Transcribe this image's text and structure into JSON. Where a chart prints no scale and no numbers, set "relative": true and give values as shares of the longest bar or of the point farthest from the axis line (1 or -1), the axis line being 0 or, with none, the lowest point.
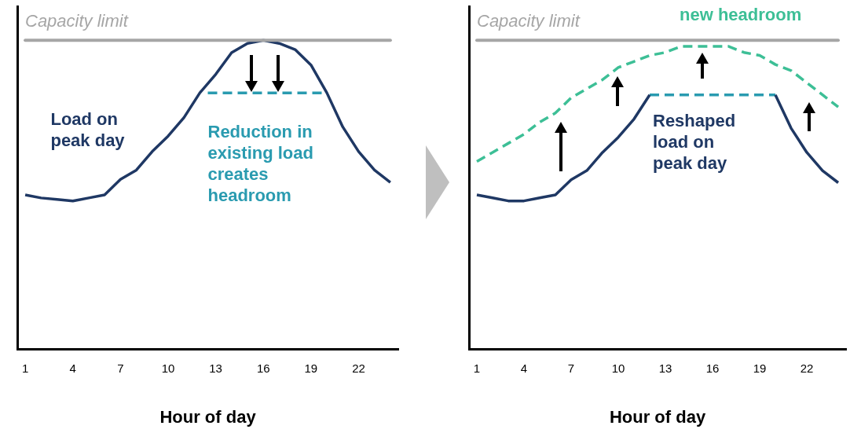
{
  "chart_data": [
    {
      "type": "line",
      "relative": true,
      "xlabel": "Hour of day",
      "x": [
        1,
        2,
        3,
        4,
        5,
        6,
        7,
        8,
        9,
        10,
        11,
        12,
        13,
        14,
        15,
        16,
        17,
        18,
        19,
        20,
        21,
        22,
        23,
        24
      ],
      "xlim": [
        0.5,
        24.5
      ],
      "xticks": [
        1,
        4,
        7,
        10,
        13,
        16,
        19,
        22
      ],
      "legend": false,
      "marker": "none",
      "series": [
        {
          "name": "Load on peak day",
          "color": "#1f3864",
          "line_style": "solid",
          "values": [
            0.5,
            0.49,
            0.485,
            0.48,
            0.49,
            0.5,
            0.55,
            0.58,
            0.64,
            0.69,
            0.75,
            0.83,
            0.89,
            0.96,
            0.99,
            1.0,
            0.99,
            0.97,
            0.92,
            0.83,
            0.72,
            0.64,
            0.58,
            0.54
          ]
        },
        {
          "name": "Reduction in existing load creates headroom",
          "color": "#2a9bb0",
          "line_style": "dashed",
          "x": [
            12.5,
            19.9
          ],
          "values": [
            0.83,
            0.83
          ]
        }
      ],
      "ref_lines": [
        {
          "axis": "y",
          "value": 1.0,
          "label": "Capacity limit",
          "color": "#a6a6a6"
        }
      ]
    },
    {
      "type": "line",
      "relative": true,
      "xlabel": "Hour of day",
      "x": [
        1,
        2,
        3,
        4,
        5,
        6,
        7,
        8,
        9,
        10,
        11,
        12,
        13,
        14,
        15,
        16,
        17,
        18,
        19,
        20,
        21,
        22,
        23,
        24
      ],
      "xlim": [
        0.5,
        24.5
      ],
      "xticks": [
        1,
        4,
        7,
        10,
        13,
        16,
        19,
        22
      ],
      "legend": false,
      "marker": "none",
      "series": [
        {
          "name": "Reshaped load on peak day",
          "color": "#1f3864",
          "line_style": "solid",
          "values": [
            0.51,
            0.5,
            0.49,
            0.49,
            0.5,
            0.51,
            0.56,
            0.59,
            0.65,
            0.7,
            0.76,
            0.84,
            null,
            null,
            null,
            null,
            null,
            null,
            null,
            0.84,
            0.73,
            0.65,
            0.59,
            0.55
          ]
        },
        {
          "color": "#2a9bb0",
          "line_style": "dashed",
          "x": [
            12,
            20
          ],
          "values": [
            0.84,
            0.84
          ]
        },
        {
          "name": "new headroom",
          "color": "#3dbf96",
          "line_style": "dashed",
          "values": [
            0.62,
            0.65,
            0.68,
            0.71,
            0.75,
            0.78,
            0.83,
            0.86,
            0.89,
            0.93,
            0.95,
            0.97,
            0.98,
            1.0,
            1.0,
            1.0,
            1.0,
            0.98,
            0.97,
            0.94,
            0.92,
            0.88,
            0.84,
            0.8
          ]
        }
      ],
      "ref_lines": [
        {
          "axis": "y",
          "value": 1.02,
          "label": "Capacity limit",
          "color": "#a6a6a6"
        }
      ]
    }
  ]
}
